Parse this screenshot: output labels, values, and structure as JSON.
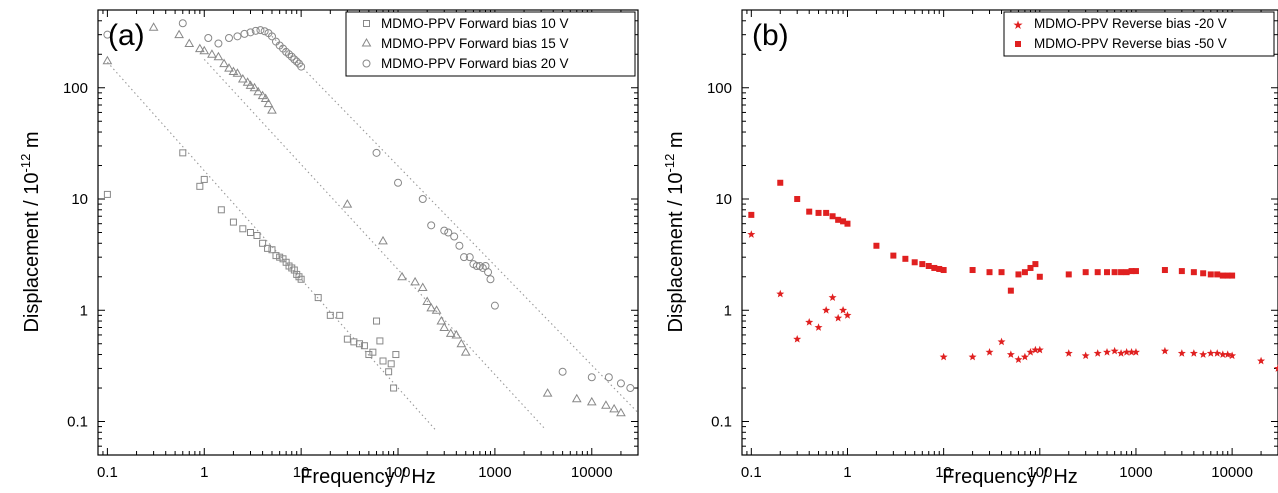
{
  "chart_data": [
    {
      "panel_label": "(a)",
      "type": "scatter",
      "xscale": "log",
      "yscale": "log",
      "xlim": [
        0.08,
        30000
      ],
      "ylim": [
        0.05,
        500
      ],
      "xticks": [
        0.1,
        1,
        10,
        100,
        1000,
        10000
      ],
      "xtick_labels": [
        "0.1",
        "1",
        "10",
        "100",
        "1000",
        "10000"
      ],
      "yticks": [
        0.1,
        1,
        10,
        100
      ],
      "ytick_labels": [
        "0.1",
        "1",
        "10",
        "100"
      ],
      "xlabel": "Frequency / Hz",
      "ylabel_main": "Displacement / 10",
      "ylabel_exp": "-12",
      "ylabel_unit": " m",
      "grid": false,
      "legend_position": "top-right",
      "series": [
        {
          "name": "MDMO-PPV Forward bias 10 V",
          "marker": "square",
          "color": "#888888",
          "x": [
            0.1,
            0.6,
            0.9,
            1.0,
            1.5,
            2.0,
            2.5,
            3.0,
            3.5,
            4.0,
            4.5,
            5.0,
            5.5,
            6.0,
            6.5,
            7.0,
            7.5,
            8.0,
            8.5,
            9.0,
            9.5,
            10,
            15,
            20,
            25,
            30,
            35,
            40,
            45,
            50,
            55,
            60,
            65,
            70,
            80,
            85,
            90,
            95
          ],
          "y": [
            11,
            26,
            13,
            15,
            8,
            6.2,
            5.4,
            5,
            4.7,
            4,
            3.6,
            3.5,
            3.1,
            3,
            2.9,
            2.7,
            2.5,
            2.4,
            2.3,
            2.1,
            2.0,
            1.9,
            1.3,
            0.9,
            0.9,
            0.55,
            0.52,
            0.5,
            0.48,
            0.4,
            0.42,
            0.8,
            0.53,
            0.35,
            0.28,
            0.33,
            0.2,
            0.4
          ]
        },
        {
          "name": "MDMO-PPV Forward bias 15 V",
          "marker": "triangle",
          "color": "#888888",
          "x": [
            0.1,
            0.3,
            0.55,
            0.7,
            0.9,
            1.0,
            1.2,
            1.4,
            1.6,
            1.8,
            2.0,
            2.2,
            2.5,
            2.8,
            3.0,
            3.3,
            3.6,
            4.0,
            4.3,
            4.6,
            5.0,
            30,
            70,
            110,
            150,
            180,
            200,
            220,
            250,
            280,
            300,
            350,
            400,
            450,
            500,
            3500,
            7000,
            10000,
            14000,
            17000,
            20000
          ],
          "y": [
            175,
            350,
            300,
            250,
            225,
            215,
            200,
            190,
            165,
            150,
            140,
            135,
            120,
            112,
            105,
            100,
            92,
            85,
            80,
            72,
            63,
            9,
            4.2,
            2.0,
            1.8,
            1.6,
            1.2,
            1.05,
            1.0,
            0.8,
            0.7,
            0.62,
            0.6,
            0.5,
            0.42,
            0.18,
            0.16,
            0.15,
            0.14,
            0.13,
            0.12
          ]
        },
        {
          "name": "MDMO-PPV Forward bias 20 V",
          "marker": "circle",
          "color": "#888888",
          "x": [
            0.1,
            0.6,
            1.1,
            1.4,
            1.8,
            2.2,
            2.6,
            3.0,
            3.4,
            3.8,
            4.2,
            4.6,
            5.0,
            5.5,
            6.0,
            6.5,
            7.0,
            7.5,
            8.0,
            8.5,
            9.0,
            9.5,
            10,
            60,
            100,
            180,
            220,
            300,
            330,
            380,
            430,
            480,
            550,
            600,
            650,
            700,
            750,
            800,
            850,
            900,
            1000,
            5000,
            10000,
            15000,
            20000,
            25000
          ],
          "y": [
            300,
            380,
            280,
            250,
            280,
            290,
            305,
            315,
            325,
            330,
            322,
            310,
            290,
            260,
            240,
            225,
            210,
            200,
            190,
            180,
            172,
            165,
            155,
            26,
            14,
            10,
            5.8,
            5.2,
            5.0,
            4.6,
            3.8,
            3.0,
            3.0,
            2.6,
            2.5,
            2.5,
            2.4,
            2.5,
            2.2,
            1.9,
            1.1,
            0.28,
            0.25,
            0.25,
            0.22,
            0.2
          ]
        }
      ],
      "fit_lines": [
        {
          "x": [
            0.1,
            250
          ],
          "y": [
            170,
            0.082
          ]
        },
        {
          "x": [
            1.0,
            3200
          ],
          "y": [
            180,
            0.088
          ]
        },
        {
          "x": [
            5.0,
            30000
          ],
          "y": [
            290,
            0.12
          ]
        }
      ]
    },
    {
      "panel_label": "(b)",
      "type": "scatter",
      "xscale": "log",
      "yscale": "log",
      "xlim": [
        0.08,
        30000
      ],
      "ylim": [
        0.05,
        500
      ],
      "xticks": [
        0.1,
        1,
        10,
        100,
        1000,
        10000
      ],
      "xtick_labels": [
        "0.1",
        "1",
        "10",
        "100",
        "1000",
        "10000"
      ],
      "yticks": [
        0.1,
        1,
        10,
        100
      ],
      "ytick_labels": [
        "0.1",
        "1",
        "10",
        "100"
      ],
      "xlabel": "Frequency / Hz",
      "ylabel_main": "Displacement / 10",
      "ylabel_exp": "-12",
      "ylabel_unit": " m",
      "grid": false,
      "legend_position": "top-right",
      "series": [
        {
          "name": "MDMO-PPV Reverse bias -20 V",
          "marker": "star",
          "color": "#e02020",
          "x": [
            0.1,
            0.2,
            0.3,
            0.4,
            0.5,
            0.6,
            0.7,
            0.8,
            0.9,
            1.0,
            10,
            20,
            30,
            40,
            50,
            60,
            70,
            80,
            90,
            100,
            200,
            300,
            400,
            500,
            600,
            700,
            800,
            900,
            1000,
            2000,
            3000,
            4000,
            5000,
            6000,
            7000,
            8000,
            9000,
            10000,
            20000,
            30000
          ],
          "y": [
            4.8,
            1.4,
            0.55,
            0.78,
            0.7,
            1.0,
            1.3,
            0.85,
            1.0,
            0.9,
            0.38,
            0.38,
            0.42,
            0.52,
            0.4,
            0.36,
            0.38,
            0.42,
            0.44,
            0.44,
            0.41,
            0.39,
            0.41,
            0.42,
            0.43,
            0.41,
            0.42,
            0.42,
            0.42,
            0.43,
            0.41,
            0.41,
            0.4,
            0.41,
            0.41,
            0.4,
            0.4,
            0.39,
            0.35,
            0.3
          ]
        },
        {
          "name": "MDMO-PPV Reverse bias -50 V",
          "marker": "square-filled",
          "color": "#e02020",
          "x": [
            0.1,
            0.2,
            0.3,
            0.4,
            0.5,
            0.6,
            0.7,
            0.8,
            0.9,
            1.0,
            2,
            3,
            4,
            5,
            6,
            7,
            8,
            9,
            10,
            20,
            30,
            40,
            50,
            60,
            70,
            80,
            90,
            100,
            200,
            300,
            400,
            500,
            600,
            700,
            800,
            900,
            1000,
            2000,
            3000,
            4000,
            5000,
            6000,
            7000,
            8000,
            9000,
            10000
          ],
          "y": [
            7.2,
            14,
            10,
            7.7,
            7.5,
            7.5,
            7.0,
            6.5,
            6.3,
            6.0,
            3.8,
            3.1,
            2.9,
            2.7,
            2.6,
            2.5,
            2.4,
            2.35,
            2.3,
            2.3,
            2.2,
            2.2,
            1.5,
            2.1,
            2.2,
            2.4,
            2.6,
            2.0,
            2.1,
            2.2,
            2.2,
            2.2,
            2.2,
            2.2,
            2.2,
            2.25,
            2.25,
            2.3,
            2.25,
            2.2,
            2.15,
            2.1,
            2.1,
            2.05,
            2.05,
            2.05
          ]
        }
      ]
    }
  ]
}
